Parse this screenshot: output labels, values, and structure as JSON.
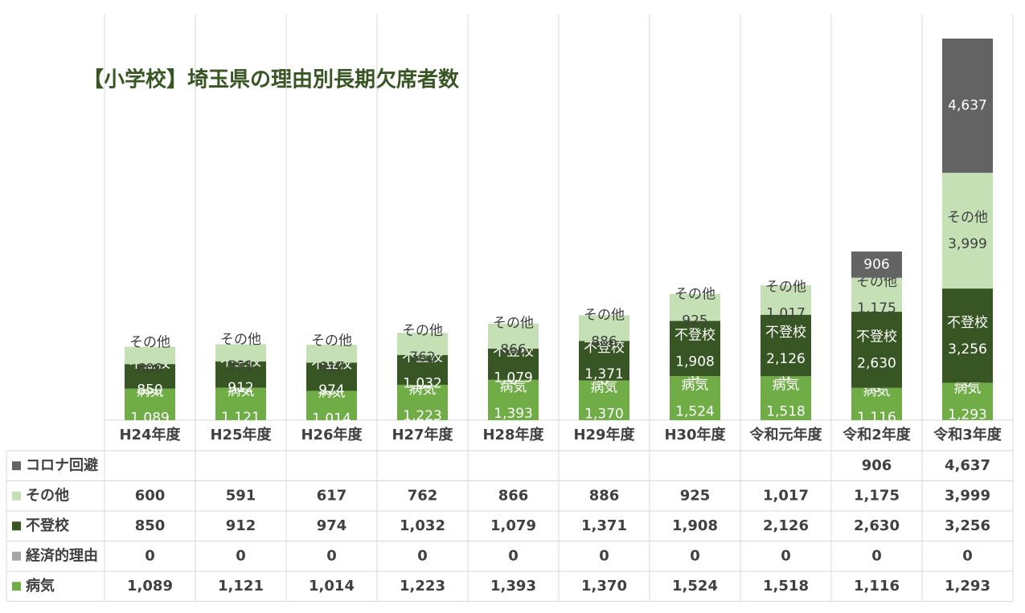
{
  "chart_data": {
    "type": "stacked_bar",
    "title": "【小学校】埼玉県の理由別長期欠席者数",
    "categories": [
      "H24年度",
      "H25年度",
      "H26年度",
      "H27年度",
      "H28年度",
      "H29年度",
      "H30年度",
      "令和元年度",
      "令和2年度",
      "令和3年度"
    ],
    "series": [
      {
        "name": "病気",
        "color": "#70ad47",
        "label_color": "#ffffff",
        "label_name": true,
        "values": [
          1089,
          1121,
          1014,
          1223,
          1393,
          1370,
          1524,
          1518,
          1116,
          1293
        ],
        "value_labels": [
          "1,089",
          "1,121",
          "1,014",
          "1,223",
          "1,393",
          "1,370",
          "1,524",
          "1,518",
          "1,116",
          "1,293"
        ]
      },
      {
        "name": "経済的理由",
        "color": "#a5a5a5",
        "label_color": "#ffffff",
        "label_name": false,
        "values": [
          0,
          0,
          0,
          0,
          0,
          0,
          0,
          0,
          0,
          0
        ],
        "value_labels": [
          "0",
          "0",
          "0",
          "0",
          "0",
          "0",
          "0",
          "0",
          "0",
          "0"
        ]
      },
      {
        "name": "不登校",
        "color": "#375623",
        "label_color": "#ffffff",
        "label_name": true,
        "values": [
          850,
          912,
          974,
          1032,
          1079,
          1371,
          1908,
          2126,
          2630,
          3256
        ],
        "value_labels": [
          "850",
          "912",
          "974",
          "1,032",
          "1,079",
          "1,371",
          "1,908",
          "2,126",
          "2,630",
          "3,256"
        ]
      },
      {
        "name": "その他",
        "color": "#c5e0b4",
        "label_color": "#404040",
        "label_name": true,
        "values": [
          600,
          591,
          617,
          762,
          866,
          886,
          925,
          1017,
          1175,
          3999
        ],
        "value_labels": [
          "600",
          "591",
          "617",
          "762",
          "866",
          "886",
          "925",
          "1,017",
          "1,175",
          "3,999"
        ]
      },
      {
        "name": "コロナ回避",
        "color": "#636363",
        "label_color": "#ffffff",
        "label_name": false,
        "values": [
          null,
          null,
          null,
          null,
          null,
          null,
          null,
          null,
          906,
          4637
        ],
        "value_labels": [
          null,
          null,
          null,
          null,
          null,
          null,
          null,
          null,
          "906",
          "4,637"
        ]
      }
    ],
    "data_table": true
  }
}
